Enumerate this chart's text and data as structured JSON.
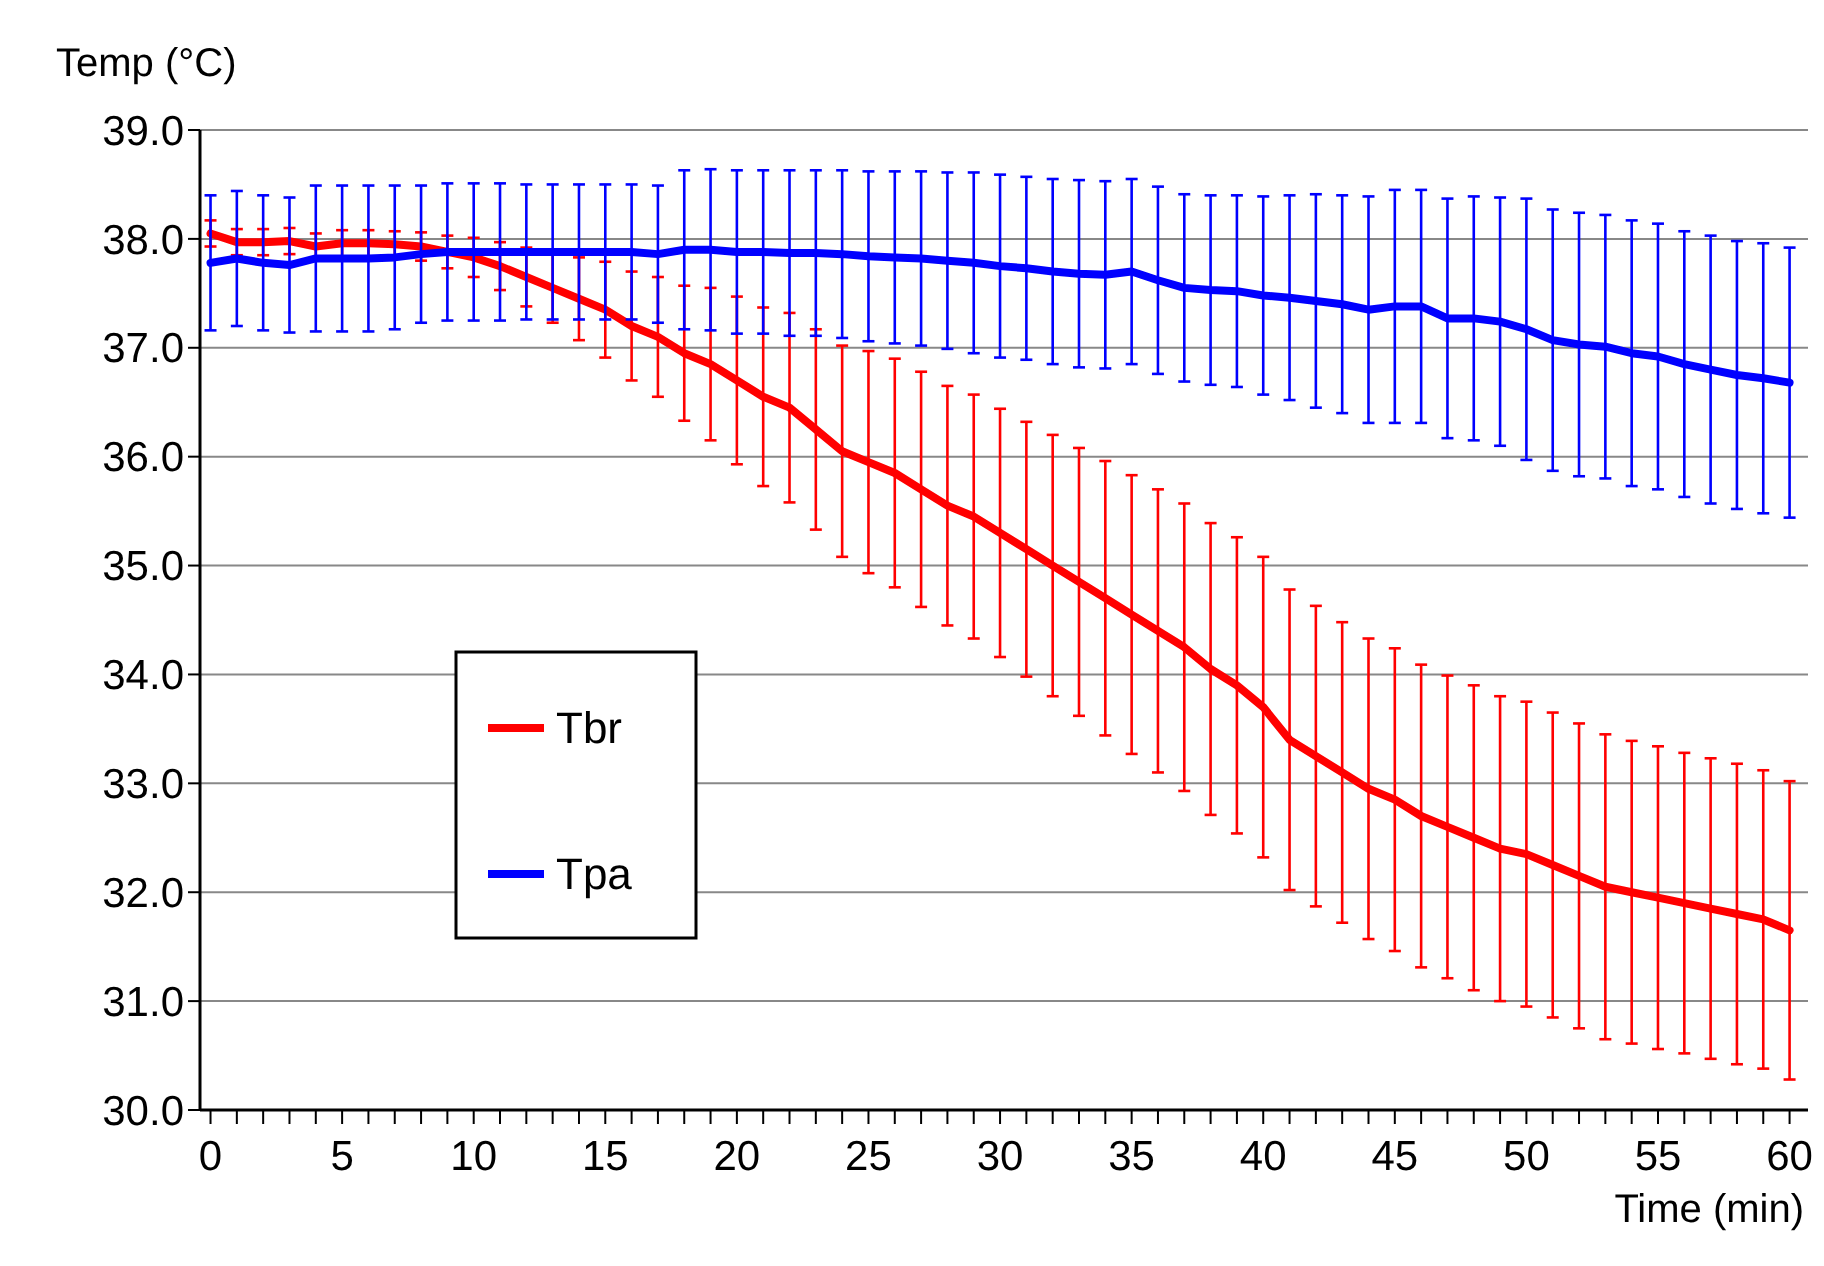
{
  "chart_data": {
    "type": "line",
    "xlabel": "Time (min)",
    "ylabel": "Temp (°C)",
    "x": [
      0,
      1,
      2,
      3,
      4,
      5,
      6,
      7,
      8,
      9,
      10,
      11,
      12,
      13,
      14,
      15,
      16,
      17,
      18,
      19,
      20,
      21,
      22,
      23,
      24,
      25,
      26,
      27,
      28,
      29,
      30,
      31,
      32,
      33,
      34,
      35,
      36,
      37,
      38,
      39,
      40,
      41,
      42,
      43,
      44,
      45,
      46,
      47,
      48,
      49,
      50,
      51,
      52,
      53,
      54,
      55,
      56,
      57,
      58,
      59,
      60
    ],
    "xlim": [
      -0.4,
      60.7
    ],
    "xticks": [
      0,
      {
        "value": 1,
        "label": null
      },
      {
        "value": 2,
        "label": null
      },
      {
        "value": 3,
        "label": null
      },
      {
        "value": 4,
        "label": null
      },
      5,
      {
        "value": 6,
        "label": null
      },
      {
        "value": 7,
        "label": null
      },
      {
        "value": 8,
        "label": null
      },
      {
        "value": 9,
        "label": null
      },
      10,
      {
        "value": 11,
        "label": null
      },
      {
        "value": 12,
        "label": null
      },
      {
        "value": 13,
        "label": null
      },
      {
        "value": 14,
        "label": null
      },
      15,
      {
        "value": 16,
        "label": null
      },
      {
        "value": 17,
        "label": null
      },
      {
        "value": 18,
        "label": null
      },
      {
        "value": 19,
        "label": null
      },
      20,
      {
        "value": 21,
        "label": null
      },
      {
        "value": 22,
        "label": null
      },
      {
        "value": 23,
        "label": null
      },
      {
        "value": 24,
        "label": null
      },
      25,
      {
        "value": 26,
        "label": null
      },
      {
        "value": 27,
        "label": null
      },
      {
        "value": 28,
        "label": null
      },
      {
        "value": 29,
        "label": null
      },
      30,
      {
        "value": 31,
        "label": null
      },
      {
        "value": 32,
        "label": null
      },
      {
        "value": 33,
        "label": null
      },
      {
        "value": 34,
        "label": null
      },
      35,
      {
        "value": 36,
        "label": null
      },
      {
        "value": 37,
        "label": null
      },
      {
        "value": 38,
        "label": null
      },
      {
        "value": 39,
        "label": null
      },
      40,
      {
        "value": 41,
        "label": null
      },
      {
        "value": 42,
        "label": null
      },
      {
        "value": 43,
        "label": null
      },
      {
        "value": 44,
        "label": null
      },
      45,
      {
        "value": 46,
        "label": null
      },
      {
        "value": 47,
        "label": null
      },
      {
        "value": 48,
        "label": null
      },
      {
        "value": 49,
        "label": null
      },
      50,
      {
        "value": 51,
        "label": null
      },
      {
        "value": 52,
        "label": null
      },
      {
        "value": 53,
        "label": null
      },
      {
        "value": 54,
        "label": null
      },
      55,
      {
        "value": 56,
        "label": null
      },
      {
        "value": 57,
        "label": null
      },
      {
        "value": 58,
        "label": null
      },
      {
        "value": 59,
        "label": null
      },
      60
    ],
    "ylim": [
      30,
      39
    ],
    "yticks": [
      {
        "value": 30,
        "label": "30.0"
      },
      {
        "value": 31,
        "label": "31.0"
      },
      {
        "value": 32,
        "label": "32.0"
      },
      {
        "value": 33,
        "label": "33.0"
      },
      {
        "value": 34,
        "label": "34.0"
      },
      {
        "value": 35,
        "label": "35.0"
      },
      {
        "value": 36,
        "label": "36.0"
      },
      {
        "value": 37,
        "label": "37.0"
      },
      {
        "value": 38,
        "label": "38.0"
      },
      {
        "value": 39,
        "label": "39.0"
      }
    ],
    "grid": "y",
    "legend": "left",
    "marker": "none",
    "line_style": "solid",
    "series": [
      {
        "name": "Tbr",
        "color": "#ff0000",
        "values": [
          38.05,
          37.97,
          37.97,
          37.98,
          37.93,
          37.96,
          37.96,
          37.95,
          37.93,
          37.88,
          37.83,
          37.75,
          37.65,
          37.55,
          37.45,
          37.35,
          37.2,
          37.1,
          36.95,
          36.85,
          36.7,
          36.55,
          36.45,
          36.25,
          36.05,
          35.95,
          35.85,
          35.7,
          35.55,
          35.45,
          35.3,
          35.15,
          35.0,
          34.85,
          34.7,
          34.55,
          34.4,
          34.25,
          34.05,
          33.9,
          33.7,
          33.4,
          33.25,
          33.1,
          32.95,
          32.85,
          32.7,
          32.6,
          32.5,
          32.4,
          32.35,
          32.25,
          32.15,
          32.05,
          32.0,
          31.95,
          31.9,
          31.85,
          31.8,
          31.75,
          31.65
        ],
        "errors": [
          0.12,
          0.12,
          0.12,
          0.12,
          0.12,
          0.12,
          0.12,
          0.12,
          0.13,
          0.15,
          0.18,
          0.22,
          0.27,
          0.32,
          0.38,
          0.44,
          0.5,
          0.55,
          0.62,
          0.7,
          0.77,
          0.82,
          0.87,
          0.92,
          0.97,
          1.02,
          1.05,
          1.08,
          1.1,
          1.12,
          1.14,
          1.17,
          1.2,
          1.23,
          1.26,
          1.28,
          1.3,
          1.32,
          1.34,
          1.36,
          1.38,
          1.38,
          1.38,
          1.38,
          1.38,
          1.39,
          1.39,
          1.39,
          1.4,
          1.4,
          1.4,
          1.4,
          1.4,
          1.4,
          1.39,
          1.39,
          1.38,
          1.38,
          1.38,
          1.37,
          1.37
        ]
      },
      {
        "name": "Tpa",
        "color": "#0000ff",
        "values": [
          37.78,
          37.82,
          37.78,
          37.76,
          37.82,
          37.82,
          37.82,
          37.83,
          37.86,
          37.88,
          37.88,
          37.88,
          37.88,
          37.88,
          37.88,
          37.88,
          37.88,
          37.86,
          37.9,
          37.9,
          37.88,
          37.88,
          37.87,
          37.87,
          37.86,
          37.84,
          37.83,
          37.82,
          37.8,
          37.78,
          37.75,
          37.73,
          37.7,
          37.68,
          37.67,
          37.7,
          37.62,
          37.55,
          37.53,
          37.52,
          37.48,
          37.46,
          37.43,
          37.4,
          37.35,
          37.38,
          37.38,
          37.27,
          37.27,
          37.24,
          37.17,
          37.07,
          37.03,
          37.01,
          36.95,
          36.92,
          36.85,
          36.8,
          36.75,
          36.72,
          36.68
        ],
        "errors": [
          0.62,
          0.62,
          0.62,
          0.62,
          0.67,
          0.67,
          0.67,
          0.66,
          0.63,
          0.63,
          0.63,
          0.63,
          0.62,
          0.62,
          0.62,
          0.62,
          0.62,
          0.63,
          0.73,
          0.74,
          0.75,
          0.75,
          0.76,
          0.76,
          0.77,
          0.78,
          0.79,
          0.8,
          0.81,
          0.83,
          0.84,
          0.84,
          0.85,
          0.86,
          0.86,
          0.85,
          0.86,
          0.86,
          0.87,
          0.88,
          0.91,
          0.94,
          0.98,
          1.0,
          1.04,
          1.07,
          1.07,
          1.1,
          1.12,
          1.14,
          1.2,
          1.2,
          1.21,
          1.21,
          1.22,
          1.22,
          1.22,
          1.23,
          1.23,
          1.24,
          1.24
        ]
      }
    ]
  }
}
